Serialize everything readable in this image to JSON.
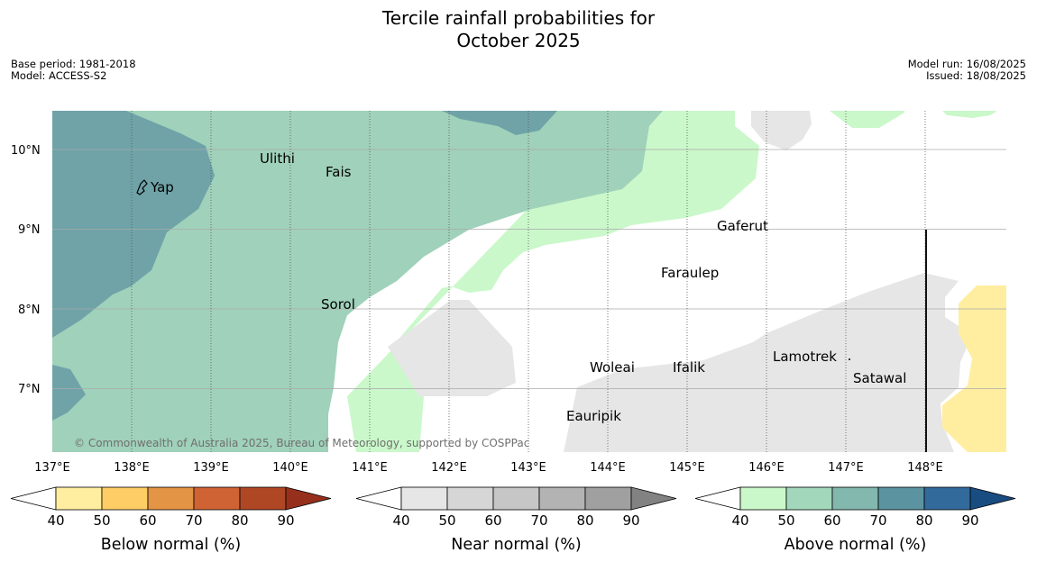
{
  "title": {
    "line1": "Tercile rainfall probabilities for",
    "line2": "October 2025"
  },
  "meta_left": {
    "base_period": "Base period: 1981-2018",
    "model": "Model: ACCESS-S2"
  },
  "meta_right": {
    "model_run": "Model run: 16/08/2025",
    "issued": "Issued: 18/08/2025"
  },
  "map": {
    "lat_labels": [
      "10°N",
      "9°N",
      "8°N",
      "7°N"
    ],
    "lon_labels": [
      "137°E",
      "138°E",
      "139°E",
      "140°E",
      "141°E",
      "142°E",
      "143°E",
      "144°E",
      "145°E",
      "146°E",
      "147°E",
      "148°E"
    ],
    "places": [
      "Yap",
      "Ulithi",
      "Fais",
      "Sorol",
      "Gaferut",
      "Faraulep",
      "Woleai",
      "Ifalik",
      "Lamotrek",
      "Satawal",
      "Eauripik"
    ],
    "copyright": "© Commonwealth of Australia 2025, Bureau of Meteorology, supported by COSPPac"
  },
  "colorbars": [
    {
      "name": "below",
      "title": "Below normal (%)",
      "ticks": [
        "40",
        "50",
        "60",
        "70",
        "80",
        "90"
      ],
      "colors": [
        "#ffffff",
        "#ffeea0",
        "#ffcd66",
        "#e39444",
        "#cf6333",
        "#b04724",
        "#96301d"
      ]
    },
    {
      "name": "near",
      "title": "Near normal (%)",
      "ticks": [
        "40",
        "50",
        "60",
        "70",
        "80",
        "90"
      ],
      "colors": [
        "#ffffff",
        "#e6e6e6",
        "#d6d6d6",
        "#c6c6c6",
        "#b3b3b3",
        "#a0a0a0",
        "#828282"
      ]
    },
    {
      "name": "above",
      "title": "Above normal (%)",
      "ticks": [
        "40",
        "50",
        "60",
        "70",
        "80",
        "90"
      ],
      "colors": [
        "#ffffff",
        "#caf8ca",
        "#a3d7bc",
        "#82b8ad",
        "#5b94a0",
        "#336a9c",
        "#194c80"
      ]
    }
  ]
}
